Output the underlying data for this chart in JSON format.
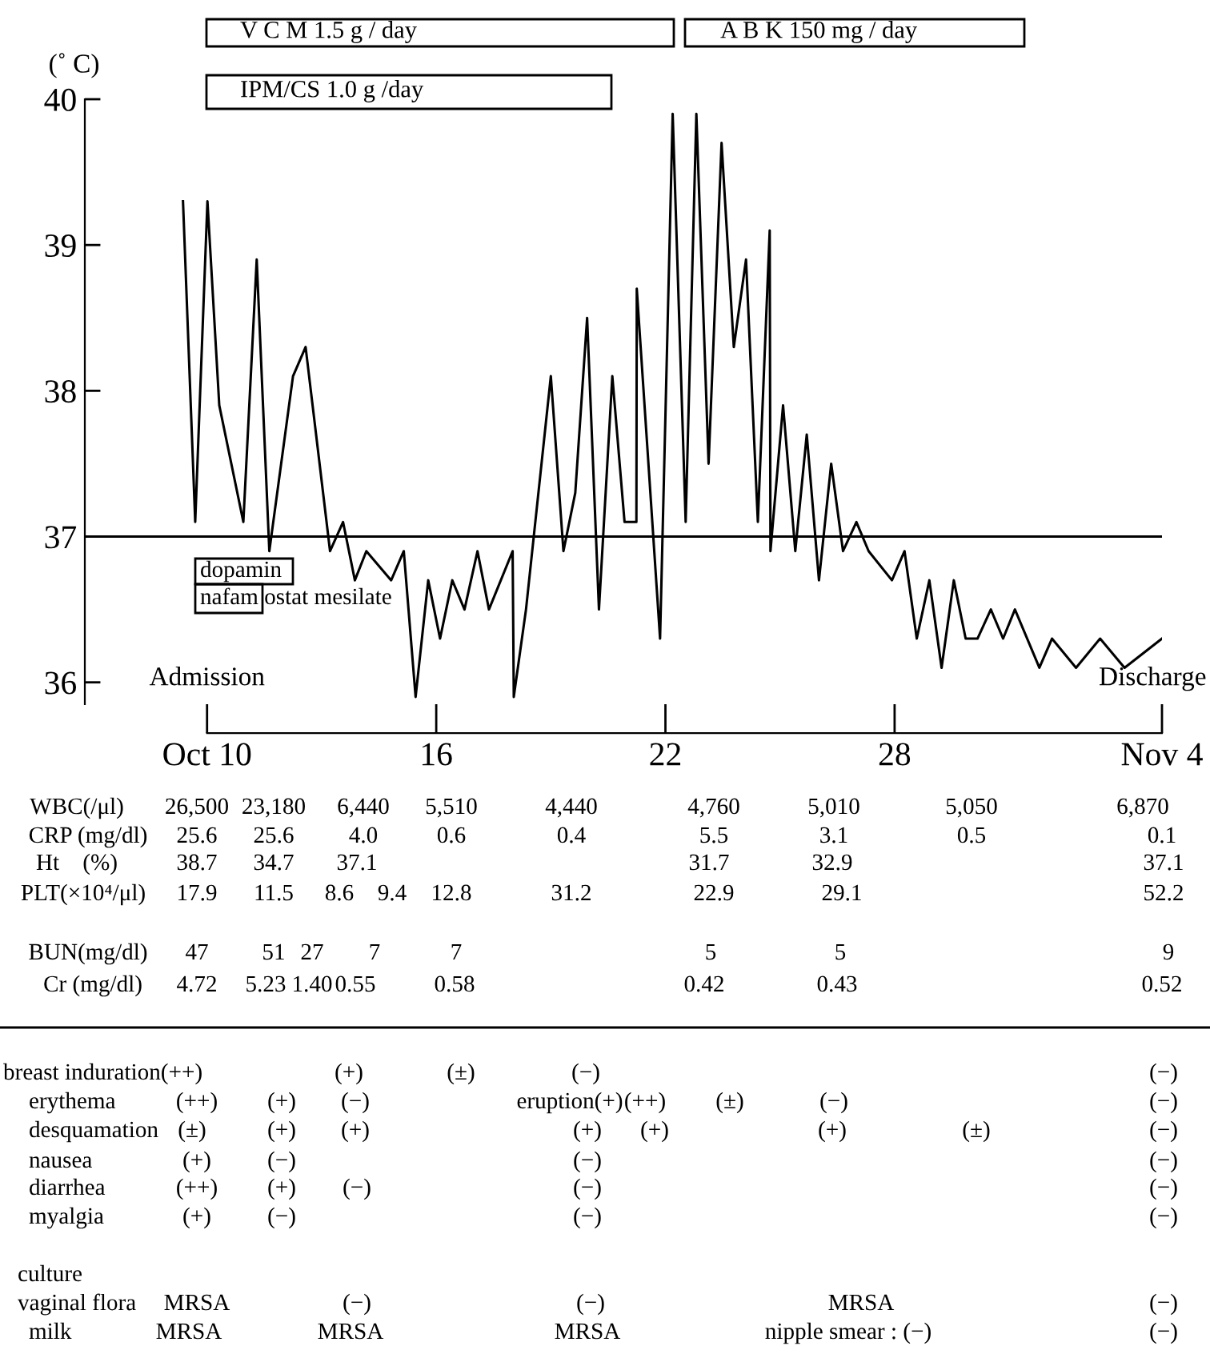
{
  "chart_data": {
    "type": "line",
    "ylabel": "(˚ C)",
    "x": [
      9.37,
      9.69,
      10.01,
      10.32,
      10.95,
      11.3,
      11.63,
      12.25,
      12.58,
      13.22,
      13.56,
      13.87,
      14.17,
      14.82,
      15.15,
      15.46,
      15.79,
      16.1,
      16.42,
      16.74,
      17.08,
      17.38,
      18.0,
      18.03,
      18.35,
      19.0,
      19.33,
      19.64,
      19.95,
      20.26,
      20.61,
      20.93,
      21.24,
      21.25,
      21.86,
      22.19,
      22.53,
      22.81,
      23.13,
      23.47,
      23.79,
      24.11,
      24.42,
      24.73,
      24.75,
      25.08,
      25.4,
      25.7,
      26.02,
      26.34,
      26.65,
      27.0,
      27.32,
      27.93,
      28.26,
      28.58,
      28.91,
      29.23,
      29.55,
      29.86,
      30.17,
      30.52,
      30.84,
      31.15,
      31.79,
      32.12,
      32.75,
      33.38,
      34.02,
      35.0
    ],
    "values": [
      39.3,
      37.1,
      39.3,
      37.9,
      37.1,
      38.9,
      36.9,
      38.1,
      38.3,
      36.9,
      37.1,
      36.7,
      36.9,
      36.7,
      36.9,
      35.9,
      36.7,
      36.3,
      36.7,
      36.5,
      36.9,
      36.5,
      36.9,
      35.9,
      36.5,
      38.1,
      36.9,
      37.3,
      38.5,
      36.5,
      38.1,
      37.1,
      37.1,
      38.7,
      36.3,
      39.9,
      37.1,
      39.9,
      37.5,
      39.7,
      38.3,
      38.9,
      37.1,
      39.1,
      36.9,
      37.9,
      36.9,
      37.7,
      36.7,
      37.5,
      36.9,
      37.1,
      36.9,
      36.7,
      36.9,
      36.3,
      36.7,
      36.1,
      36.7,
      36.3,
      36.3,
      36.5,
      36.3,
      36.5,
      36.1,
      36.3,
      36.1,
      36.3,
      36.1,
      36.3
    ],
    "color": "#000000",
    "xlim": [
      6.8,
      35.0
    ],
    "xticks": [
      {
        "value": 10,
        "label": "Oct 10"
      },
      16,
      22,
      28,
      {
        "value": 35,
        "label": "Nov 4"
      }
    ],
    "ylim": [
      35.85,
      40
    ],
    "yticks": [
      36,
      37,
      38,
      39,
      40
    ],
    "grid": false,
    "legend": false,
    "ref_lines": [
      {
        "axis": "y",
        "value": 37
      }
    ],
    "annotations": [
      "V C M 1.5 g / day",
      "A B K 150 mg / day",
      "IPM/CS 1.0 g /day",
      "dopamin",
      "nafam ostat mesilate",
      {
        "text": "Admission",
        "x": 10
      },
      {
        "text": "Discharge",
        "x": 35
      },
      "WBC(/μl)",
      "26,500",
      "23,180",
      "6,440",
      "5,510",
      "4,440",
      "4,760",
      "5,010",
      "5,050",
      "6,870",
      "CRP (mg/dl)",
      "25.6",
      "25.6",
      "4.0",
      "0.6",
      "0.4",
      "5.5",
      "3.1",
      "0.5",
      "0.1",
      "Ht    (%)",
      "38.7",
      "34.7",
      "37.1",
      "31.7",
      "32.9",
      "37.1",
      "PLT(×10⁴/μl)",
      "17.9",
      "11.5",
      "8.6",
      "9.4",
      "12.8",
      "31.2",
      "22.9",
      "29.1",
      "52.2",
      "BUN(mg/dl)",
      "47",
      "51",
      "27",
      "7",
      "7",
      "5",
      "5",
      "9",
      "Cr (mg/dl)",
      "4.72",
      "5.23",
      "1.40",
      "0.55",
      "0.58",
      "0.42",
      "0.43",
      "0.52",
      "breast induration(++)",
      "(+)",
      "(±)",
      "(−)",
      "(−)",
      "erythema",
      "(++)",
      "(+)",
      "(−)",
      "eruption(+)",
      "(++)",
      "(±)",
      "(−)",
      "(−)",
      "desquamation",
      "(±)",
      "(+)",
      "(+)",
      "(+)",
      "(+)",
      "(+)",
      "(±)",
      "(−)",
      "nausea",
      "(+)",
      "(−)",
      "(−)",
      "(−)",
      "diarrhea",
      "(++)",
      "(+)",
      "(−)",
      "(−)",
      "(−)",
      "myalgia",
      "(+)",
      "(−)",
      "(−)",
      "(−)",
      "culture",
      "vaginal flora",
      "MRSA",
      "(−)",
      "(−)",
      "MRSA",
      "(−)",
      "milk",
      "MRSA",
      "MRSA",
      "MRSA",
      "nipple smear : (−)",
      "(−)"
    ]
  }
}
